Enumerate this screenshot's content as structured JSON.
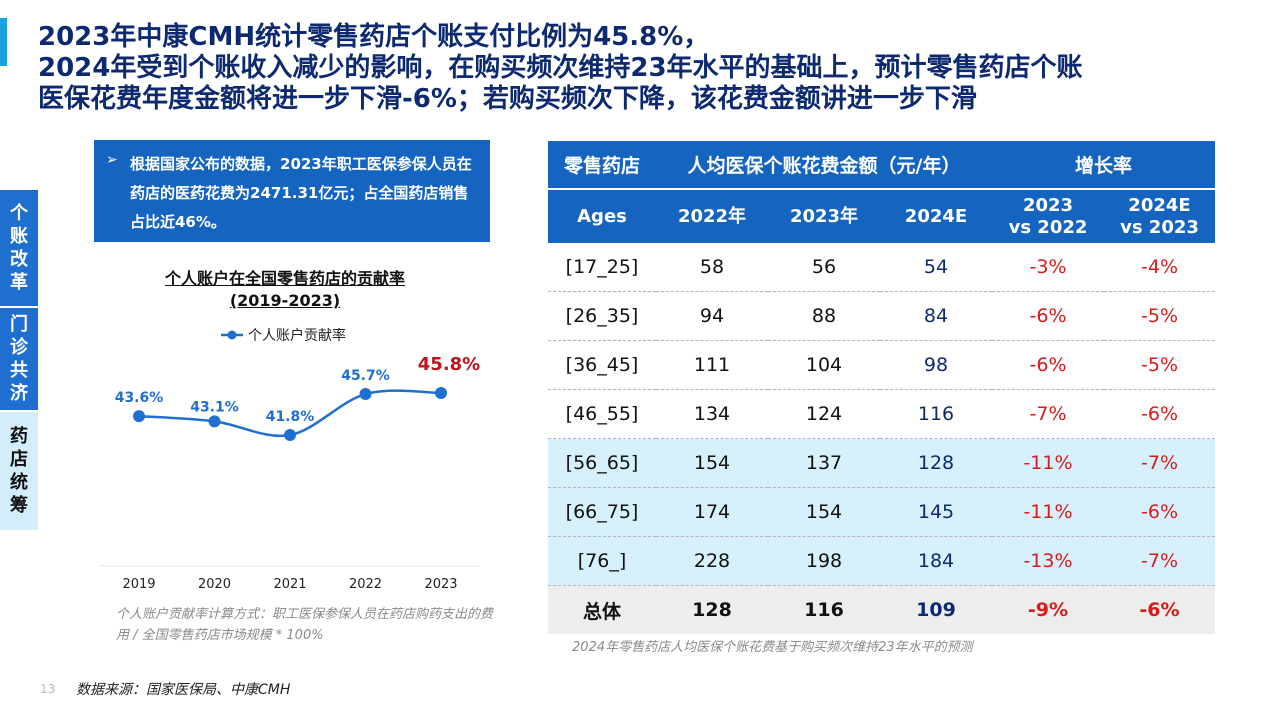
{
  "title": {
    "line1": "2023年中康CMH统计零售药店个账支付比例为45.8%，",
    "line2": "2024年受到个账收入减少的影响，在购买频次维持23年水平的基础上，预计零售药店个账",
    "line3": "医保花费年度金额将进一步下滑-6%；若购买频次下降，该花费金额讲进一步下滑"
  },
  "sidebar": {
    "tabs": [
      {
        "label": "个账改革",
        "chars": [
          "个",
          "账",
          "改",
          "革"
        ]
      },
      {
        "label": "门诊共济",
        "chars": [
          "门",
          "诊",
          "共",
          "济"
        ]
      },
      {
        "label": "药店统筹",
        "chars": [
          "药",
          "店",
          "统",
          "筹"
        ]
      }
    ]
  },
  "notice": {
    "bullet": "➢",
    "text": "根据国家公布的数据，2023年职工医保参保人员在药店的医药花费为2471.31亿元；占全国药店销售占比近46%。"
  },
  "chart": {
    "title_line1": "个人账户在全国零售药店的贡献率",
    "title_line2": "(2019-2023)",
    "note": "个人账户贡献率计算方式：职工医保参保人员在药店购药支出的费用 / 全国零售药店市场规模 * 100%",
    "colors": {
      "line": "#1f6fd1",
      "highlight": "#c0141c",
      "label": "#1f6fd1"
    }
  },
  "chart_data": {
    "type": "line",
    "title": "个人账户在全国零售药店的贡献率 (2019-2023)",
    "categories": [
      "2019",
      "2020",
      "2021",
      "2022",
      "2023"
    ],
    "series": [
      {
        "name": "个人账户贡献率",
        "values": [
          43.6,
          43.1,
          41.8,
          45.7,
          45.8
        ]
      }
    ],
    "data_labels": [
      "43.6%",
      "43.1%",
      "41.8%",
      "45.7%",
      "45.8%"
    ],
    "legend_position": "top",
    "grid": false
  },
  "table": {
    "header_row1": {
      "c1": "零售药店",
      "c2": "人均医保个账花费金额（元/年）",
      "c3": "增长率"
    },
    "header_row2": {
      "c1": "Ages",
      "c2": "2022年",
      "c3": "2023年",
      "c4": "2024E",
      "c5a": "2023",
      "c5b": "vs 2022",
      "c6a": "2024E",
      "c6b": "vs 2023"
    },
    "rows": [
      {
        "age": "[17_25]",
        "v2022": "58",
        "v2023": "56",
        "v2024": "54",
        "g1": "-3%",
        "g2": "-4%"
      },
      {
        "age": "[26_35]",
        "v2022": "94",
        "v2023": "88",
        "v2024": "84",
        "g1": "-6%",
        "g2": "-5%"
      },
      {
        "age": "[36_45]",
        "v2022": "111",
        "v2023": "104",
        "v2024": "98",
        "g1": "-6%",
        "g2": "-5%"
      },
      {
        "age": "[46_55]",
        "v2022": "134",
        "v2023": "124",
        "v2024": "116",
        "g1": "-7%",
        "g2": "-6%"
      },
      {
        "age": "[56_65]",
        "v2022": "154",
        "v2023": "137",
        "v2024": "128",
        "g1": "-11%",
        "g2": "-7%"
      },
      {
        "age": "[66_75]",
        "v2022": "174",
        "v2023": "154",
        "v2024": "145",
        "g1": "-11%",
        "g2": "-6%"
      },
      {
        "age": "[76_]",
        "v2022": "228",
        "v2023": "198",
        "v2024": "184",
        "g1": "-13%",
        "g2": "-7%"
      },
      {
        "age": "总体",
        "v2022": "128",
        "v2023": "116",
        "v2024": "109",
        "g1": "-9%",
        "g2": "-6%"
      }
    ],
    "note": "2024年零售药店人均医保个账花费基于购买频次维持23年水平的预测"
  },
  "footer": {
    "page_number": "13",
    "source": "数据来源：国家医保局、中康CMH"
  }
}
